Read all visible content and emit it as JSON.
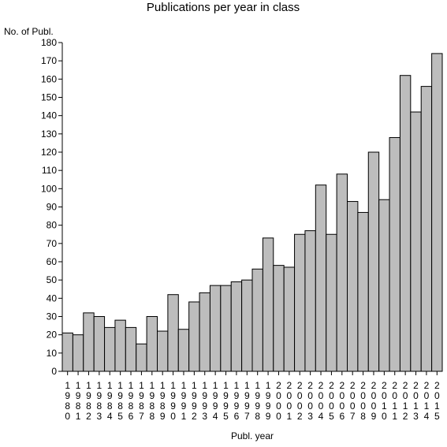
{
  "chart_data": {
    "type": "bar",
    "title": "Publications per year in class",
    "ylabel": "No. of Publ.",
    "xlabel": "Publ. year",
    "ylim": [
      0,
      180
    ],
    "yticks": [
      0,
      10,
      20,
      30,
      40,
      50,
      60,
      70,
      80,
      90,
      100,
      110,
      120,
      130,
      140,
      150,
      160,
      170,
      180
    ],
    "categories": [
      "1980",
      "1981",
      "1982",
      "1983",
      "1984",
      "1985",
      "1986",
      "1987",
      "1988",
      "1989",
      "1990",
      "1991",
      "1992",
      "1993",
      "1994",
      "1995",
      "1996",
      "1997",
      "1998",
      "1999",
      "2000",
      "2001",
      "2002",
      "2003",
      "2004",
      "2005",
      "2006",
      "2007",
      "2008",
      "2009",
      "2010",
      "2011",
      "2012",
      "2013",
      "2014",
      "2015"
    ],
    "values": [
      21,
      20,
      32,
      30,
      24,
      28,
      24,
      15,
      30,
      22,
      42,
      23,
      38,
      43,
      47,
      47,
      49,
      50,
      56,
      73,
      58,
      57,
      75,
      77,
      102,
      75,
      108,
      93,
      87,
      120,
      94,
      128,
      162,
      142,
      156,
      174
    ],
    "bar_color": "#bdbdbd",
    "grid": false,
    "legend": "none"
  }
}
